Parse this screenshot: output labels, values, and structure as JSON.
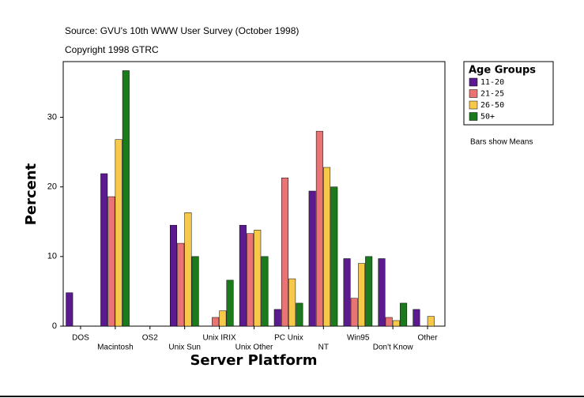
{
  "chart_data": {
    "type": "bar",
    "title": "Source: GVU's 10th WWW User Survey (October 1998)",
    "subtitle": "Copyright 1998 GTRC",
    "xlabel": "Server Platform",
    "ylabel": "Percent",
    "legend_title": "Age Groups",
    "note": "Bars show Means",
    "categories": [
      "DOS",
      "Macintosh",
      "OS2",
      "Unix Sun",
      "Unix IRIX",
      "Unix Other",
      "PC Unix",
      "NT",
      "Win95",
      "Don't Know",
      "Other"
    ],
    "series": [
      {
        "name": "11-20",
        "color": "#5b1a8e",
        "values": [
          4.8,
          21.9,
          0,
          14.5,
          0,
          14.5,
          2.4,
          19.4,
          9.7,
          9.7,
          2.4
        ]
      },
      {
        "name": "21-25",
        "color": "#ea7373",
        "values": [
          0,
          18.6,
          0,
          11.9,
          1.25,
          13.3,
          21.3,
          28.0,
          4.0,
          1.25,
          0
        ]
      },
      {
        "name": "26-50",
        "color": "#f6c94a",
        "values": [
          0,
          26.8,
          0,
          16.3,
          2.2,
          13.8,
          6.8,
          22.8,
          9.0,
          0.8,
          1.4
        ]
      },
      {
        "name": "50+",
        "color": "#1b7a1b",
        "values": [
          0,
          36.7,
          0,
          10.0,
          6.6,
          10.0,
          3.3,
          20.0,
          10.0,
          3.3,
          0
        ]
      }
    ],
    "ylim": [
      0,
      38
    ],
    "yticks": [
      0,
      10,
      20,
      30
    ],
    "legend_position": "right"
  }
}
